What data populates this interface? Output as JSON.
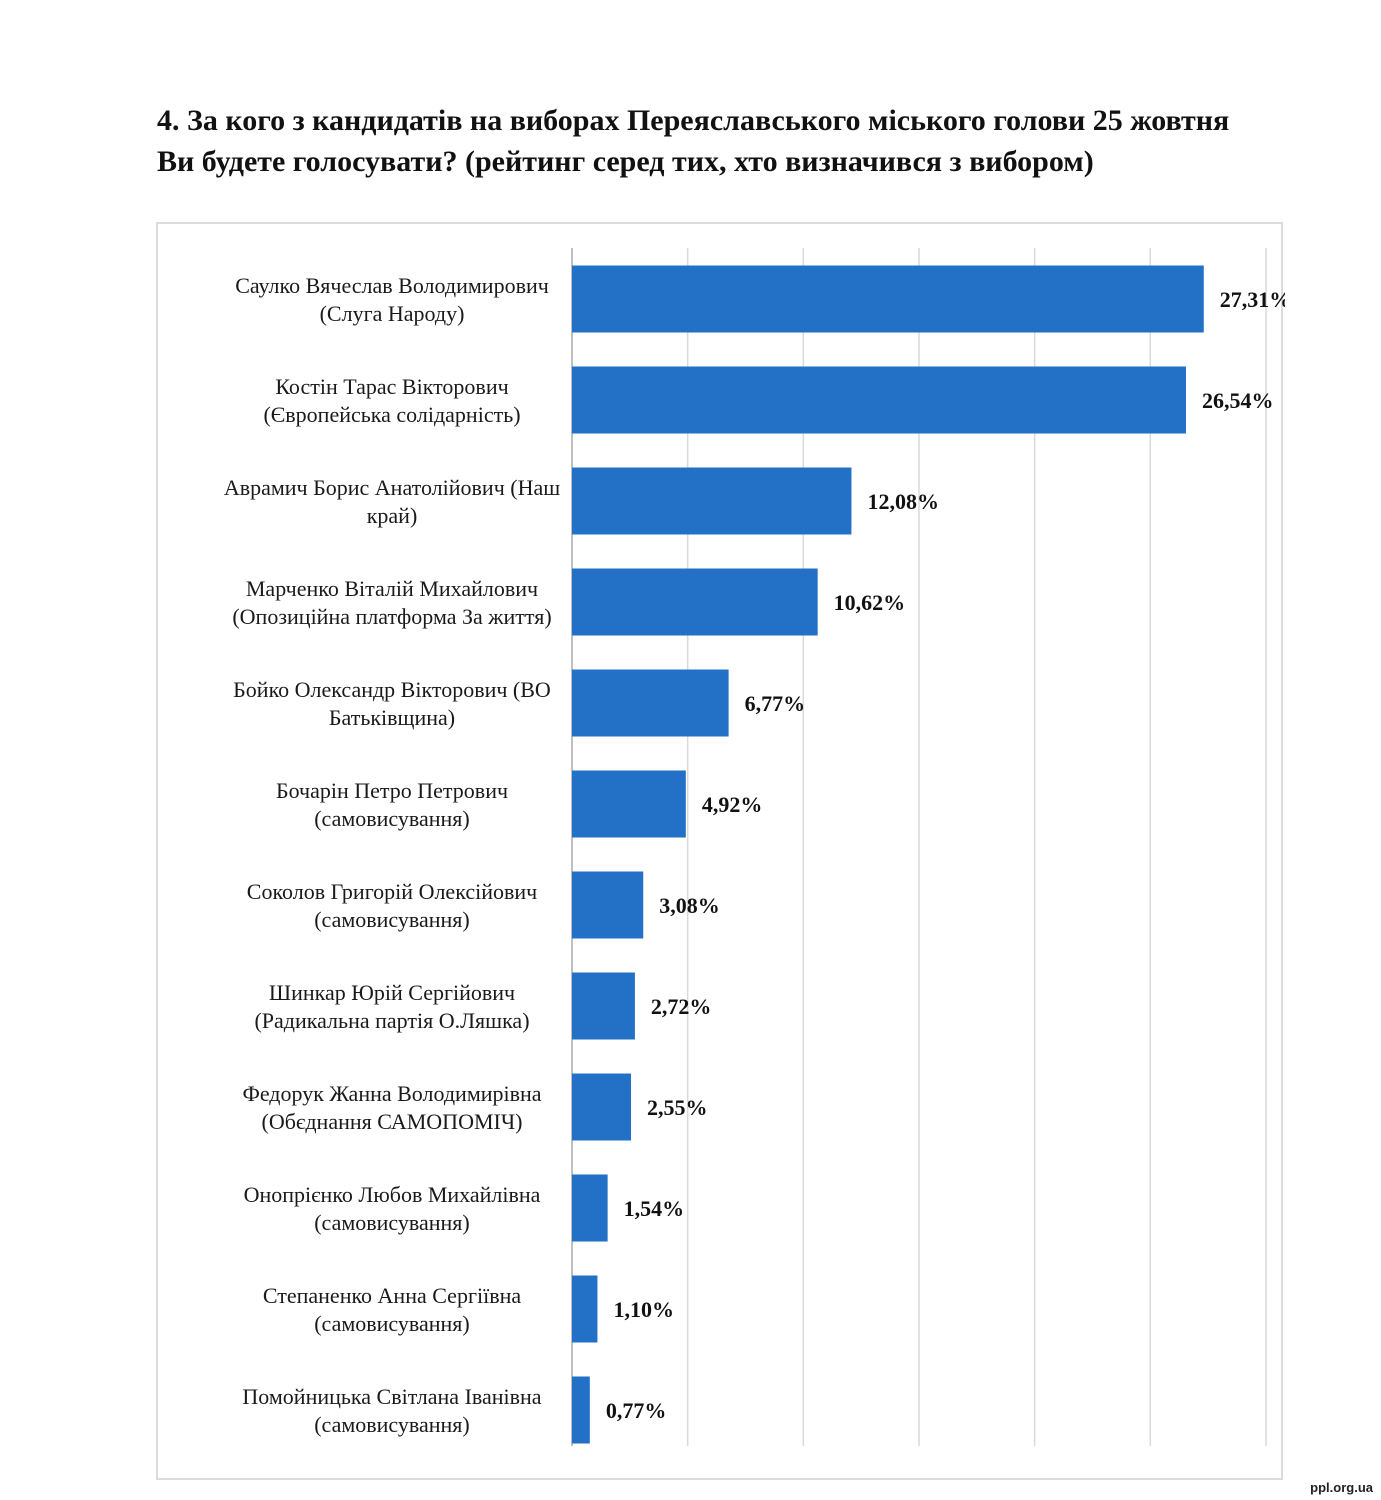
{
  "title": "4. За кого з кандидатів на виборах Переяславського міського голови 25 жовтня Ви будете голосувати? (рейтинг серед тих, хто визначився з вибором)",
  "watermark": "ppl.org.ua",
  "chart_data": {
    "type": "bar",
    "orientation": "horizontal",
    "bar_color": "#2370c7",
    "grid_color": "#d9d9d9",
    "grid": true,
    "xlim": [
      0,
      30
    ],
    "categories": [
      [
        "Саулко Вячеслав Володимирович",
        "(Слуга Народу)"
      ],
      [
        "Костін Тарас Вікторович",
        "(Європейська солідарність)"
      ],
      [
        "Аврамич Борис Анатолійович (Наш",
        "край)"
      ],
      [
        "Марченко Віталій Михайлович",
        "(Опозиційна платформа За життя)"
      ],
      [
        "Бойко Олександр Вікторович (ВО",
        "Батьківщина)"
      ],
      [
        "Бочарін Петро Петрович",
        "(самовисування)"
      ],
      [
        "Соколов Григорій Олексійович",
        "(самовисування)"
      ],
      [
        "Шинкар Юрій Сергійович",
        "(Радикальна партія О.Ляшка)"
      ],
      [
        "Федорук Жанна Володимирівна",
        "(Обєднання САМОПОМІЧ)"
      ],
      [
        "Онопрієнко Любов Михайлівна",
        "(самовисування)"
      ],
      [
        "Степаненко Анна Сергіївна",
        "(самовисування)"
      ],
      [
        "Помойницька Світлана Іванівна",
        "(самовисування)"
      ]
    ],
    "values": [
      27.31,
      26.54,
      12.08,
      10.62,
      6.77,
      4.92,
      3.08,
      2.72,
      2.55,
      1.54,
      1.1,
      0.77
    ],
    "value_labels": [
      "27,31%",
      "26,54%",
      "12,08%",
      "10,62%",
      "6,77%",
      "4,92%",
      "3,08%",
      "2,72%",
      "2,55%",
      "1,54%",
      "1,10%",
      "0,77%"
    ]
  }
}
